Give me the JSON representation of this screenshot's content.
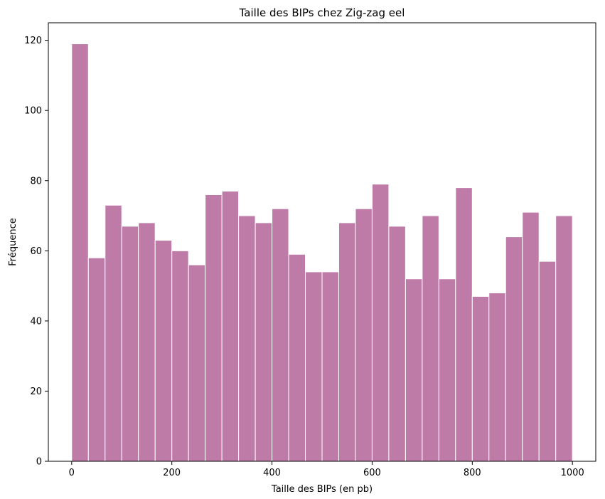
{
  "chart_data": {
    "type": "bar",
    "title": "Taille des BIPs chez Zig-zag eel",
    "xlabel": "Taille des BIPs (en pb)",
    "ylabel": "Fréquence",
    "xlim": [
      -46.6,
      1046.6
    ],
    "ylim": [
      0,
      125
    ],
    "x_ticks": [
      0,
      200,
      400,
      600,
      800,
      1000
    ],
    "y_ticks": [
      0,
      20,
      40,
      60,
      80,
      100,
      120
    ],
    "bin_edges": [
      0,
      33.33,
      66.67,
      100,
      133.33,
      166.67,
      200,
      233.33,
      266.67,
      300,
      333.33,
      366.67,
      400,
      433.33,
      466.67,
      500,
      533.33,
      566.67,
      600,
      633.33,
      666.67,
      700,
      733.33,
      766.67,
      800,
      833.33,
      866.67,
      900,
      933.33,
      966.67,
      1000
    ],
    "values": [
      119,
      58,
      73,
      67,
      68,
      63,
      60,
      56,
      76,
      77,
      70,
      68,
      72,
      59,
      54,
      54,
      68,
      72,
      79,
      67,
      52,
      70,
      52,
      78,
      47,
      48,
      64,
      71,
      57,
      70
    ],
    "grid": false,
    "colors": {
      "bar_fill": "#bf7ba8",
      "bar_edge": "#ffffff"
    }
  }
}
